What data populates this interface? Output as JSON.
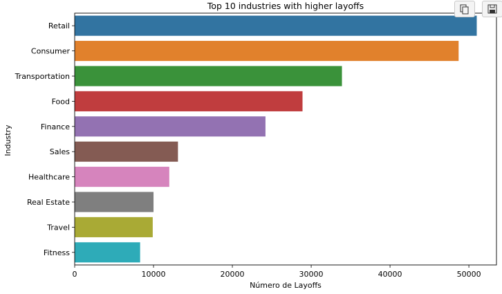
{
  "chart_data": {
    "type": "bar",
    "orientation": "horizontal",
    "title": "Top 10 industries with higher layoffs",
    "xlabel": "Número de Layoffs",
    "ylabel": "Industry",
    "categories": [
      "Retail",
      "Consumer",
      "Transportation",
      "Food",
      "Finance",
      "Sales",
      "Healthcare",
      "Real Estate",
      "Travel",
      "Fitness"
    ],
    "values": [
      51000,
      48700,
      33900,
      28900,
      24200,
      13100,
      12000,
      10000,
      9900,
      8300
    ],
    "colors": [
      "#3274a1",
      "#e1812c",
      "#3a923a",
      "#c03d3e",
      "#9372b2",
      "#845b53",
      "#d684bd",
      "#7f7f7f",
      "#a9aa35",
      "#2eabb8"
    ],
    "xlim": [
      0,
      53500
    ],
    "xticks": [
      0,
      10000,
      20000,
      30000,
      40000,
      50000
    ],
    "xtick_labels": [
      "0",
      "10000",
      "20000",
      "30000",
      "40000",
      "50000"
    ],
    "grid": false
  },
  "toolbar": {
    "copy_icon": "copy-icon",
    "save_icon": "save-icon"
  }
}
